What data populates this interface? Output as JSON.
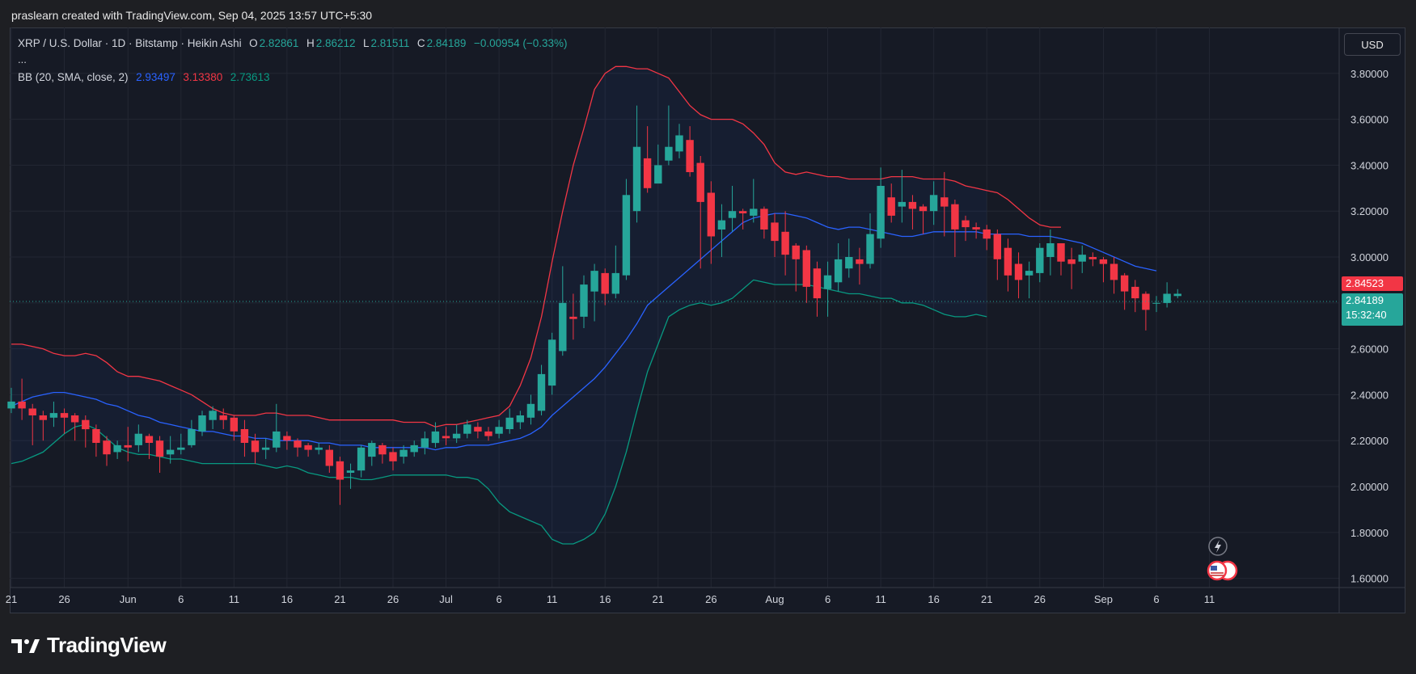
{
  "header": {
    "created_by": "praslearn created with TradingView.com, Sep 04, 2025 13:57 UTC+5:30"
  },
  "legend": {
    "symbol": "XRP / U.S. Dollar · 1D · Bitstamp · Heikin Ashi",
    "o_label": "O",
    "o_value": "2.82861",
    "h_label": "H",
    "h_value": "2.86212",
    "l_label": "L",
    "l_value": "2.81511",
    "c_label": "C",
    "c_value": "2.84189",
    "change": "−0.00954 (−0.33%)",
    "more": "...",
    "bb_label": "BB (20, SMA, close, 2)",
    "bb_basis": "2.93497",
    "bb_upper": "3.13380",
    "bb_lower": "2.73613"
  },
  "currency_button": "USD",
  "price_tags": {
    "upper_tag": "2.84523",
    "last_price": "2.84189",
    "countdown": "15:32:40"
  },
  "brand": "TradingView",
  "colors": {
    "up": "#26a69a",
    "down": "#f23645",
    "basis": "#2962ff",
    "upper": "#f23645",
    "lower": "#089981",
    "background": "#161a25"
  },
  "chart_data": {
    "type": "candlestick",
    "ylim": [
      1.56,
      4.0
    ],
    "x_range_days": [
      -11,
      81
    ],
    "y_ticks": [
      "3.80000",
      "3.60000",
      "3.40000",
      "3.20000",
      "3.00000",
      "2.80000",
      "2.60000",
      "2.40000",
      "2.20000",
      "2.00000",
      "1.80000",
      "1.60000"
    ],
    "x_ticks": [
      {
        "label": "21",
        "day": -11
      },
      {
        "label": "26",
        "day": -6
      },
      {
        "label": "Jun",
        "day": 0
      },
      {
        "label": "6",
        "day": 5
      },
      {
        "label": "11",
        "day": 10
      },
      {
        "label": "16",
        "day": 15
      },
      {
        "label": "21",
        "day": 20
      },
      {
        "label": "26",
        "day": 25
      },
      {
        "label": "Jul",
        "day": 30
      },
      {
        "label": "6",
        "day": 35
      },
      {
        "label": "11",
        "day": 40
      },
      {
        "label": "16",
        "day": 45
      },
      {
        "label": "21",
        "day": 50
      },
      {
        "label": "26",
        "day": 55
      },
      {
        "label": "Aug",
        "day": 61
      },
      {
        "label": "6",
        "day": 66
      },
      {
        "label": "11",
        "day": 71
      },
      {
        "label": "16",
        "day": 76
      },
      {
        "label": "21",
        "day": 81
      },
      {
        "label": "26",
        "day": 86
      },
      {
        "label": "Sep",
        "day": 92
      },
      {
        "label": "6",
        "day": 97
      },
      {
        "label": "11",
        "day": 102
      }
    ],
    "candles": [
      [
        2.34,
        2.37,
        2.43,
        2.32
      ],
      [
        2.37,
        2.34,
        2.47,
        2.29
      ],
      [
        2.34,
        2.31,
        2.36,
        2.18
      ],
      [
        2.31,
        2.29,
        2.33,
        2.2
      ],
      [
        2.3,
        2.32,
        2.37,
        2.26
      ],
      [
        2.32,
        2.3,
        2.34,
        2.23
      ],
      [
        2.31,
        2.28,
        2.32,
        2.2
      ],
      [
        2.29,
        2.25,
        2.31,
        2.17
      ],
      [
        2.25,
        2.19,
        2.27,
        2.13
      ],
      [
        2.2,
        2.14,
        2.22,
        2.09
      ],
      [
        2.15,
        2.18,
        2.2,
        2.12
      ],
      [
        2.18,
        2.17,
        2.26,
        2.11
      ],
      [
        2.18,
        2.23,
        2.27,
        2.15
      ],
      [
        2.22,
        2.19,
        2.23,
        2.12
      ],
      [
        2.2,
        2.13,
        2.22,
        2.06
      ],
      [
        2.14,
        2.16,
        2.22,
        2.1
      ],
      [
        2.16,
        2.17,
        2.23,
        2.14
      ],
      [
        2.18,
        2.25,
        2.29,
        2.17
      ],
      [
        2.24,
        2.31,
        2.33,
        2.22
      ],
      [
        2.29,
        2.33,
        2.35,
        2.25
      ],
      [
        2.31,
        2.29,
        2.34,
        2.25
      ],
      [
        2.3,
        2.24,
        2.31,
        2.2
      ],
      [
        2.25,
        2.19,
        2.29,
        2.13
      ],
      [
        2.2,
        2.15,
        2.23,
        2.1
      ],
      [
        2.16,
        2.17,
        2.21,
        2.12
      ],
      [
        2.17,
        2.24,
        2.36,
        2.15
      ],
      [
        2.22,
        2.2,
        2.24,
        2.16
      ],
      [
        2.2,
        2.17,
        2.21,
        2.13
      ],
      [
        2.18,
        2.16,
        2.19,
        2.13
      ],
      [
        2.16,
        2.17,
        2.19,
        2.14
      ],
      [
        2.16,
        2.09,
        2.18,
        2.06
      ],
      [
        2.11,
        2.03,
        2.13,
        1.92
      ],
      [
        2.06,
        2.07,
        2.1,
        1.99
      ],
      [
        2.07,
        2.17,
        2.18,
        2.04
      ],
      [
        2.13,
        2.19,
        2.2,
        2.09
      ],
      [
        2.18,
        2.14,
        2.19,
        2.1
      ],
      [
        2.15,
        2.11,
        2.17,
        2.07
      ],
      [
        2.13,
        2.16,
        2.18,
        2.1
      ],
      [
        2.15,
        2.18,
        2.2,
        2.13
      ],
      [
        2.17,
        2.21,
        2.24,
        2.14
      ],
      [
        2.19,
        2.24,
        2.28,
        2.17
      ],
      [
        2.22,
        2.21,
        2.26,
        2.18
      ],
      [
        2.21,
        2.23,
        2.27,
        2.19
      ],
      [
        2.23,
        2.27,
        2.29,
        2.21
      ],
      [
        2.26,
        2.24,
        2.28,
        2.21
      ],
      [
        2.24,
        2.22,
        2.26,
        2.2
      ],
      [
        2.23,
        2.26,
        2.29,
        2.21
      ],
      [
        2.25,
        2.3,
        2.34,
        2.23
      ],
      [
        2.28,
        2.31,
        2.33,
        2.25
      ],
      [
        2.3,
        2.36,
        2.4,
        2.27
      ],
      [
        2.33,
        2.49,
        2.53,
        2.31
      ],
      [
        2.44,
        2.64,
        2.67,
        2.4
      ],
      [
        2.59,
        2.8,
        2.96,
        2.57
      ],
      [
        2.74,
        2.73,
        2.84,
        2.64
      ],
      [
        2.74,
        2.88,
        2.92,
        2.69
      ],
      [
        2.85,
        2.94,
        2.97,
        2.72
      ],
      [
        2.93,
        2.84,
        2.95,
        2.79
      ],
      [
        2.84,
        2.93,
        3.05,
        2.82
      ],
      [
        2.92,
        3.27,
        3.34,
        2.9
      ],
      [
        3.2,
        3.48,
        3.66,
        3.15
      ],
      [
        3.43,
        3.3,
        3.57,
        3.28
      ],
      [
        3.32,
        3.4,
        3.49,
        3.33
      ],
      [
        3.42,
        3.48,
        3.66,
        3.4
      ],
      [
        3.46,
        3.53,
        3.58,
        3.43
      ],
      [
        3.51,
        3.37,
        3.57,
        3.35
      ],
      [
        3.41,
        3.24,
        3.44,
        2.95
      ],
      [
        3.28,
        3.09,
        3.33,
        2.97
      ],
      [
        3.12,
        3.16,
        3.23,
        3.0
      ],
      [
        3.17,
        3.2,
        3.31,
        3.11
      ],
      [
        3.2,
        3.19,
        3.21,
        3.12
      ],
      [
        3.18,
        3.21,
        3.34,
        3.15
      ],
      [
        3.21,
        3.12,
        3.22,
        3.08
      ],
      [
        3.15,
        3.07,
        3.19,
        3.0
      ],
      [
        3.11,
        3.01,
        3.2,
        2.92
      ],
      [
        3.05,
        2.99,
        3.06,
        2.85
      ],
      [
        3.03,
        2.87,
        3.05,
        2.8
      ],
      [
        2.95,
        2.82,
        2.98,
        2.74
      ],
      [
        2.86,
        2.92,
        2.98,
        2.74
      ],
      [
        2.89,
        2.99,
        3.06,
        2.85
      ],
      [
        2.95,
        3.0,
        3.08,
        2.91
      ],
      [
        2.99,
        2.97,
        3.04,
        2.88
      ],
      [
        2.97,
        3.1,
        3.19,
        2.95
      ],
      [
        3.08,
        3.31,
        3.39,
        3.04
      ],
      [
        3.26,
        3.18,
        3.32,
        3.15
      ],
      [
        3.22,
        3.24,
        3.38,
        3.15
      ],
      [
        3.24,
        3.21,
        3.27,
        3.12
      ],
      [
        3.22,
        3.2,
        3.23,
        3.1
      ],
      [
        3.2,
        3.27,
        3.33,
        3.14
      ],
      [
        3.26,
        3.22,
        3.37,
        3.09
      ],
      [
        3.23,
        3.12,
        3.25,
        3.0
      ],
      [
        3.16,
        3.13,
        3.18,
        3.07
      ],
      [
        3.13,
        3.12,
        3.15,
        3.08
      ],
      [
        3.12,
        3.08,
        3.14,
        3.03
      ],
      [
        3.1,
        2.99,
        3.12,
        2.9
      ],
      [
        3.04,
        2.92,
        3.08,
        2.85
      ],
      [
        2.97,
        2.9,
        3.02,
        2.82
      ],
      [
        2.92,
        2.94,
        2.98,
        2.82
      ],
      [
        2.93,
        3.04,
        3.06,
        2.89
      ],
      [
        3.0,
        3.06,
        3.12,
        2.92
      ],
      [
        3.06,
        2.98,
        3.06,
        2.92
      ],
      [
        2.99,
        2.97,
        3.04,
        2.86
      ],
      [
        2.98,
        3.01,
        3.05,
        2.93
      ],
      [
        3.0,
        2.99,
        3.02,
        2.96
      ],
      [
        2.99,
        2.97,
        3.0,
        2.89
      ],
      [
        2.97,
        2.9,
        3.0,
        2.84
      ],
      [
        2.92,
        2.85,
        2.93,
        2.77
      ],
      [
        2.87,
        2.82,
        2.9,
        2.76
      ],
      [
        2.84,
        2.77,
        2.85,
        2.68
      ],
      [
        2.8,
        2.8,
        2.83,
        2.76
      ],
      [
        2.8,
        2.84,
        2.89,
        2.78
      ],
      [
        2.83,
        2.84,
        2.86,
        2.82
      ]
    ],
    "bb_basis": [
      2.35,
      2.37,
      2.39,
      2.4,
      2.41,
      2.41,
      2.4,
      2.39,
      2.38,
      2.36,
      2.35,
      2.33,
      2.31,
      2.3,
      2.28,
      2.27,
      2.26,
      2.25,
      2.24,
      2.24,
      2.23,
      2.22,
      2.22,
      2.21,
      2.21,
      2.2,
      2.2,
      2.2,
      2.2,
      2.19,
      2.19,
      2.18,
      2.18,
      2.18,
      2.17,
      2.17,
      2.17,
      2.17,
      2.17,
      2.17,
      2.16,
      2.17,
      2.17,
      2.18,
      2.18,
      2.18,
      2.19,
      2.2,
      2.21,
      2.23,
      2.26,
      2.31,
      2.35,
      2.39,
      2.43,
      2.47,
      2.52,
      2.58,
      2.64,
      2.71,
      2.79,
      2.83,
      2.87,
      2.91,
      2.95,
      2.99,
      3.03,
      3.07,
      3.11,
      3.15,
      3.17,
      3.18,
      3.19,
      3.19,
      3.18,
      3.17,
      3.15,
      3.13,
      3.12,
      3.13,
      3.13,
      3.12,
      3.11,
      3.1,
      3.09,
      3.09,
      3.1,
      3.11,
      3.11,
      3.11,
      3.11,
      3.11,
      3.1,
      3.1,
      3.1,
      3.1,
      3.09,
      3.09,
      3.09,
      3.08,
      3.07,
      3.06,
      3.04,
      3.02,
      3.0,
      2.98,
      2.96,
      2.95,
      2.94
    ],
    "bb_upper": [
      2.62,
      2.62,
      2.61,
      2.6,
      2.58,
      2.57,
      2.57,
      2.58,
      2.57,
      2.54,
      2.5,
      2.48,
      2.48,
      2.47,
      2.46,
      2.44,
      2.42,
      2.4,
      2.37,
      2.34,
      2.32,
      2.31,
      2.31,
      2.31,
      2.32,
      2.32,
      2.31,
      2.31,
      2.31,
      2.3,
      2.29,
      2.29,
      2.29,
      2.29,
      2.29,
      2.29,
      2.29,
      2.28,
      2.28,
      2.28,
      2.26,
      2.27,
      2.27,
      2.28,
      2.29,
      2.3,
      2.31,
      2.35,
      2.44,
      2.56,
      2.74,
      2.98,
      3.2,
      3.4,
      3.56,
      3.73,
      3.8,
      3.83,
      3.83,
      3.82,
      3.82,
      3.8,
      3.78,
      3.72,
      3.66,
      3.62,
      3.6,
      3.6,
      3.6,
      3.58,
      3.54,
      3.49,
      3.41,
      3.37,
      3.36,
      3.37,
      3.36,
      3.35,
      3.35,
      3.34,
      3.34,
      3.34,
      3.34,
      3.35,
      3.35,
      3.35,
      3.34,
      3.34,
      3.34,
      3.33,
      3.31,
      3.3,
      3.29,
      3.28,
      3.25,
      3.21,
      3.17,
      3.14,
      3.13,
      3.13
    ],
    "bb_lower": [
      2.1,
      2.11,
      2.13,
      2.15,
      2.19,
      2.23,
      2.26,
      2.27,
      2.25,
      2.21,
      2.17,
      2.15,
      2.14,
      2.14,
      2.13,
      2.12,
      2.12,
      2.11,
      2.1,
      2.1,
      2.1,
      2.1,
      2.1,
      2.1,
      2.09,
      2.08,
      2.09,
      2.08,
      2.06,
      2.05,
      2.04,
      2.04,
      2.04,
      2.03,
      2.03,
      2.04,
      2.05,
      2.05,
      2.05,
      2.05,
      2.05,
      2.05,
      2.04,
      2.04,
      2.03,
      1.99,
      1.93,
      1.89,
      1.87,
      1.85,
      1.83,
      1.77,
      1.75,
      1.75,
      1.77,
      1.8,
      1.88,
      2.0,
      2.15,
      2.33,
      2.5,
      2.62,
      2.74,
      2.77,
      2.79,
      2.8,
      2.79,
      2.8,
      2.82,
      2.86,
      2.9,
      2.89,
      2.88,
      2.88,
      2.88,
      2.88,
      2.87,
      2.86,
      2.85,
      2.84,
      2.84,
      2.83,
      2.82,
      2.82,
      2.8,
      2.8,
      2.79,
      2.77,
      2.75,
      2.74,
      2.74,
      2.75,
      2.74
    ]
  }
}
